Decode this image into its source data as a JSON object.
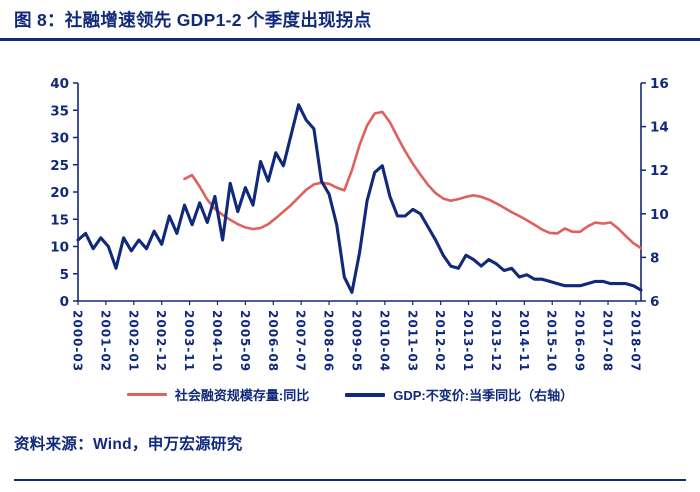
{
  "header": {
    "title": "图 8：社融增速领先 GDP1-2 个季度出现拐点"
  },
  "footer": {
    "source": "资料来源：Wind，申万宏源研究"
  },
  "colors": {
    "navy": "#10297b",
    "red": "#e0605c"
  },
  "legend": [
    {
      "label": "社会融资规模存量:同比",
      "color_key": "red"
    },
    {
      "label": "GDP:不变价:当季同比（右轴）",
      "color_key": "navy"
    }
  ],
  "chart_data": {
    "type": "line",
    "title": "社融增速领先 GDP1-2 个季度出现拐点",
    "grid": false,
    "legend_position": "bottom",
    "left_axis": {
      "min": 0,
      "max": 40,
      "ticks": [
        0,
        5,
        10,
        15,
        20,
        25,
        30,
        35,
        40
      ]
    },
    "right_axis": {
      "min": 6,
      "max": 16,
      "ticks": [
        6,
        8,
        10,
        12,
        14,
        16
      ]
    },
    "x_labels_shown": [
      "2000-03",
      "2001-02",
      "2002-01",
      "2002-12",
      "2003-11",
      "2004-10",
      "2005-09",
      "2006-08",
      "2007-07",
      "2008-06",
      "2009-05",
      "2010-04",
      "2011-03",
      "2012-02",
      "2013-01",
      "2013-12",
      "2014-11",
      "2015-10",
      "2016-09",
      "2017-08",
      "2018-07"
    ],
    "x_quarters": [
      "2000-03",
      "2000-06",
      "2000-09",
      "2000-12",
      "2001-03",
      "2001-06",
      "2001-09",
      "2001-12",
      "2002-03",
      "2002-06",
      "2002-09",
      "2002-12",
      "2003-03",
      "2003-06",
      "2003-09",
      "2003-12",
      "2004-03",
      "2004-06",
      "2004-09",
      "2004-12",
      "2005-03",
      "2005-06",
      "2005-09",
      "2005-12",
      "2006-03",
      "2006-06",
      "2006-09",
      "2006-12",
      "2007-03",
      "2007-06",
      "2007-09",
      "2007-12",
      "2008-03",
      "2008-06",
      "2008-09",
      "2008-12",
      "2009-03",
      "2009-06",
      "2009-09",
      "2009-12",
      "2010-03",
      "2010-06",
      "2010-09",
      "2010-12",
      "2011-03",
      "2011-06",
      "2011-09",
      "2011-12",
      "2012-03",
      "2012-06",
      "2012-09",
      "2012-12",
      "2013-03",
      "2013-06",
      "2013-09",
      "2013-12",
      "2014-03",
      "2014-06",
      "2014-09",
      "2014-12",
      "2015-03",
      "2015-06",
      "2015-09",
      "2015-12",
      "2016-03",
      "2016-06",
      "2016-09",
      "2016-12",
      "2017-03",
      "2017-06",
      "2017-09",
      "2017-12",
      "2018-03",
      "2018-06",
      "2018-09"
    ],
    "series": [
      {
        "name": "社会融资规模存量:同比",
        "axis": "left",
        "color": "#e0605c",
        "values": [
          null,
          null,
          null,
          null,
          null,
          null,
          null,
          null,
          null,
          null,
          null,
          null,
          null,
          null,
          22.4,
          23.1,
          21.0,
          18.6,
          16.9,
          15.8,
          14.9,
          14.1,
          13.5,
          13.2,
          13.4,
          14.1,
          15.2,
          16.4,
          17.6,
          19.0,
          20.4,
          21.4,
          21.7,
          21.5,
          20.8,
          20.3,
          24.0,
          28.6,
          32.2,
          34.4,
          34.7,
          32.8,
          30.1,
          27.5,
          25.2,
          23.2,
          21.3,
          19.8,
          18.8,
          18.4,
          18.7,
          19.1,
          19.4,
          19.1,
          18.6,
          17.9,
          17.1,
          16.3,
          15.6,
          14.8,
          14.0,
          13.1,
          12.5,
          12.4,
          13.3,
          12.7,
          12.7,
          13.7,
          14.4,
          14.2,
          14.4,
          13.3,
          11.9,
          10.6,
          9.7
        ]
      },
      {
        "name": "GDP:不变价:当季同比（右轴）",
        "axis": "right",
        "color": "#10297b",
        "values": [
          8.8,
          9.1,
          8.4,
          8.9,
          8.5,
          7.5,
          8.9,
          8.3,
          8.8,
          8.4,
          9.2,
          8.6,
          9.9,
          9.1,
          10.4,
          9.5,
          10.5,
          9.6,
          10.8,
          8.8,
          11.4,
          10.1,
          11.2,
          10.4,
          12.4,
          11.5,
          12.8,
          12.2,
          13.6,
          15.0,
          14.3,
          13.9,
          11.5,
          10.9,
          9.5,
          7.1,
          6.4,
          8.2,
          10.6,
          11.9,
          12.2,
          10.8,
          9.9,
          9.9,
          10.2,
          10.0,
          9.4,
          8.8,
          8.1,
          7.6,
          7.5,
          8.1,
          7.9,
          7.6,
          7.9,
          7.7,
          7.4,
          7.5,
          7.1,
          7.2,
          7.0,
          7.0,
          6.9,
          6.8,
          6.7,
          6.7,
          6.7,
          6.8,
          6.9,
          6.9,
          6.8,
          6.8,
          6.8,
          6.7,
          6.5
        ]
      }
    ]
  }
}
